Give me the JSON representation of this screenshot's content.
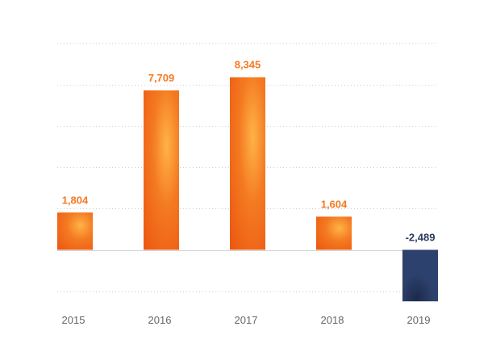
{
  "chart_data": {
    "type": "bar",
    "categories": [
      "2015",
      "2016",
      "2017",
      "2018",
      "2019"
    ],
    "values": [
      1804,
      7709,
      8345,
      1604,
      -2489
    ],
    "value_labels": [
      "1,804",
      "7,709",
      "8,345",
      "1,604",
      "-2,489"
    ],
    "title": "",
    "xlabel": "",
    "ylabel": "",
    "ylim": [
      -2000,
      10000
    ],
    "grid": true,
    "legend": "none",
    "colors": {
      "positive": "#f47a22",
      "positive_highlight": "#ffb347",
      "positive_shadow": "#ec5a12",
      "negative": "#2d416e",
      "negative_shadow": "#1c2a4a",
      "positive_label": "#f47a22",
      "negative_label": "#2d3b5c",
      "tick_label": "#666666",
      "grid": "#cfcfcf"
    }
  }
}
